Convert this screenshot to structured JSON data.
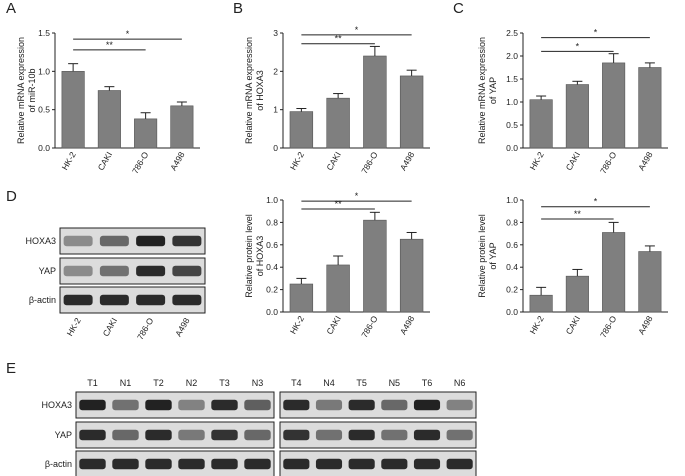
{
  "panels": {
    "A": "A",
    "B": "B",
    "C": "C",
    "D": "D",
    "E": "E"
  },
  "chart_data": [
    {
      "id": "A",
      "type": "bar",
      "ylabel": [
        "Relative mRNA expression",
        "of miR-10b"
      ],
      "categories": [
        "HK-2",
        "CAKI",
        "786-O",
        "A498"
      ],
      "values": [
        1.0,
        0.75,
        0.38,
        0.55
      ],
      "errors": [
        0.1,
        0.05,
        0.08,
        0.05
      ],
      "ylim": [
        0,
        1.5
      ],
      "yticks": [
        "0.0",
        "0.5",
        "1.0",
        "1.5"
      ],
      "ytick_values": [
        0,
        0.5,
        1.0,
        1.5
      ],
      "significance": [
        {
          "from": 0,
          "to": 2,
          "label": "**",
          "y": 1.28
        },
        {
          "from": 0,
          "to": 3,
          "label": "*",
          "y": 1.42
        }
      ]
    },
    {
      "id": "B",
      "type": "bar",
      "ylabel": [
        "Relative mRNA expression",
        "of HOXA3"
      ],
      "categories": [
        "HK-2",
        "CAKI",
        "786-O",
        "A498"
      ],
      "values": [
        0.95,
        1.3,
        2.4,
        1.88
      ],
      "errors": [
        0.08,
        0.12,
        0.25,
        0.15
      ],
      "ylim": [
        0,
        3
      ],
      "yticks": [
        "0",
        "1",
        "2",
        "3"
      ],
      "ytick_values": [
        0,
        1,
        2,
        3
      ],
      "significance": [
        {
          "from": 0,
          "to": 2,
          "label": "**",
          "y": 2.72
        },
        {
          "from": 0,
          "to": 3,
          "label": "*",
          "y": 2.95
        }
      ]
    },
    {
      "id": "C",
      "type": "bar",
      "ylabel": [
        "Relative mRNA expression",
        "of YAP"
      ],
      "categories": [
        "HK-2",
        "CAKI",
        "786-O",
        "A498"
      ],
      "values": [
        1.05,
        1.38,
        1.85,
        1.75
      ],
      "errors": [
        0.08,
        0.07,
        0.2,
        0.1
      ],
      "ylim": [
        0,
        2.5
      ],
      "yticks": [
        "0.0",
        "0.5",
        "1.0",
        "1.5",
        "2.0",
        "2.5"
      ],
      "ytick_values": [
        0,
        0.5,
        1.0,
        1.5,
        2.0,
        2.5
      ],
      "significance": [
        {
          "from": 0,
          "to": 2,
          "label": "*",
          "y": 2.1
        },
        {
          "from": 0,
          "to": 3,
          "label": "*",
          "y": 2.4
        }
      ]
    },
    {
      "id": "D1",
      "type": "bar",
      "ylabel": [
        "Relative protein level",
        "of HOXA3"
      ],
      "categories": [
        "HK-2",
        "CAKI",
        "786-O",
        "A498"
      ],
      "values": [
        0.25,
        0.42,
        0.82,
        0.65
      ],
      "errors": [
        0.05,
        0.08,
        0.07,
        0.06
      ],
      "ylim": [
        0,
        1.0
      ],
      "yticks": [
        "0.0",
        "0.2",
        "0.4",
        "0.6",
        "0.8",
        "1.0"
      ],
      "ytick_values": [
        0,
        0.2,
        0.4,
        0.6,
        0.8,
        1.0
      ],
      "significance": [
        {
          "from": 0,
          "to": 2,
          "label": "**",
          "y": 0.92
        },
        {
          "from": 0,
          "to": 3,
          "label": "*",
          "y": 0.99
        }
      ]
    },
    {
      "id": "D2",
      "type": "bar",
      "ylabel": [
        "Relative protein level",
        "of YAP"
      ],
      "categories": [
        "HK-2",
        "CAKI",
        "786-O",
        "A498"
      ],
      "values": [
        0.15,
        0.32,
        0.71,
        0.54
      ],
      "errors": [
        0.07,
        0.06,
        0.09,
        0.05
      ],
      "ylim": [
        0,
        1.0
      ],
      "yticks": [
        "0.0",
        "0.2",
        "0.4",
        "0.6",
        "0.8",
        "1.0"
      ],
      "ytick_values": [
        0,
        0.2,
        0.4,
        0.6,
        0.8,
        1.0
      ],
      "significance": [
        {
          "from": 0,
          "to": 2,
          "label": "**",
          "y": 0.83
        },
        {
          "from": 0,
          "to": 3,
          "label": "*",
          "y": 0.94
        }
      ]
    }
  ],
  "blot_d": {
    "rows": [
      "HOXA3",
      "YAP",
      "β-actin"
    ],
    "lanes": [
      "HK-2",
      "CAKI",
      "786-O",
      "A498"
    ],
    "intensity": [
      [
        0.35,
        0.55,
        0.95,
        0.85
      ],
      [
        0.35,
        0.5,
        0.9,
        0.75
      ],
      [
        0.9,
        0.9,
        0.9,
        0.9
      ]
    ]
  },
  "blot_e": {
    "rows": [
      "HOXA3",
      "YAP",
      "β-actin"
    ],
    "lanes_left": [
      "T1",
      "N1",
      "T2",
      "N2",
      "T3",
      "N3"
    ],
    "lanes_right": [
      "T4",
      "N4",
      "T5",
      "N5",
      "T6",
      "N6"
    ],
    "intensity_left": [
      [
        0.95,
        0.5,
        0.95,
        0.4,
        0.9,
        0.6
      ],
      [
        0.9,
        0.55,
        0.9,
        0.45,
        0.85,
        0.55
      ],
      [
        0.9,
        0.9,
        0.9,
        0.9,
        0.9,
        0.9
      ]
    ],
    "intensity_right": [
      [
        0.9,
        0.45,
        0.9,
        0.55,
        0.95,
        0.4
      ],
      [
        0.85,
        0.5,
        0.9,
        0.5,
        0.9,
        0.5
      ],
      [
        0.9,
        0.9,
        0.9,
        0.9,
        0.9,
        0.9
      ]
    ]
  }
}
